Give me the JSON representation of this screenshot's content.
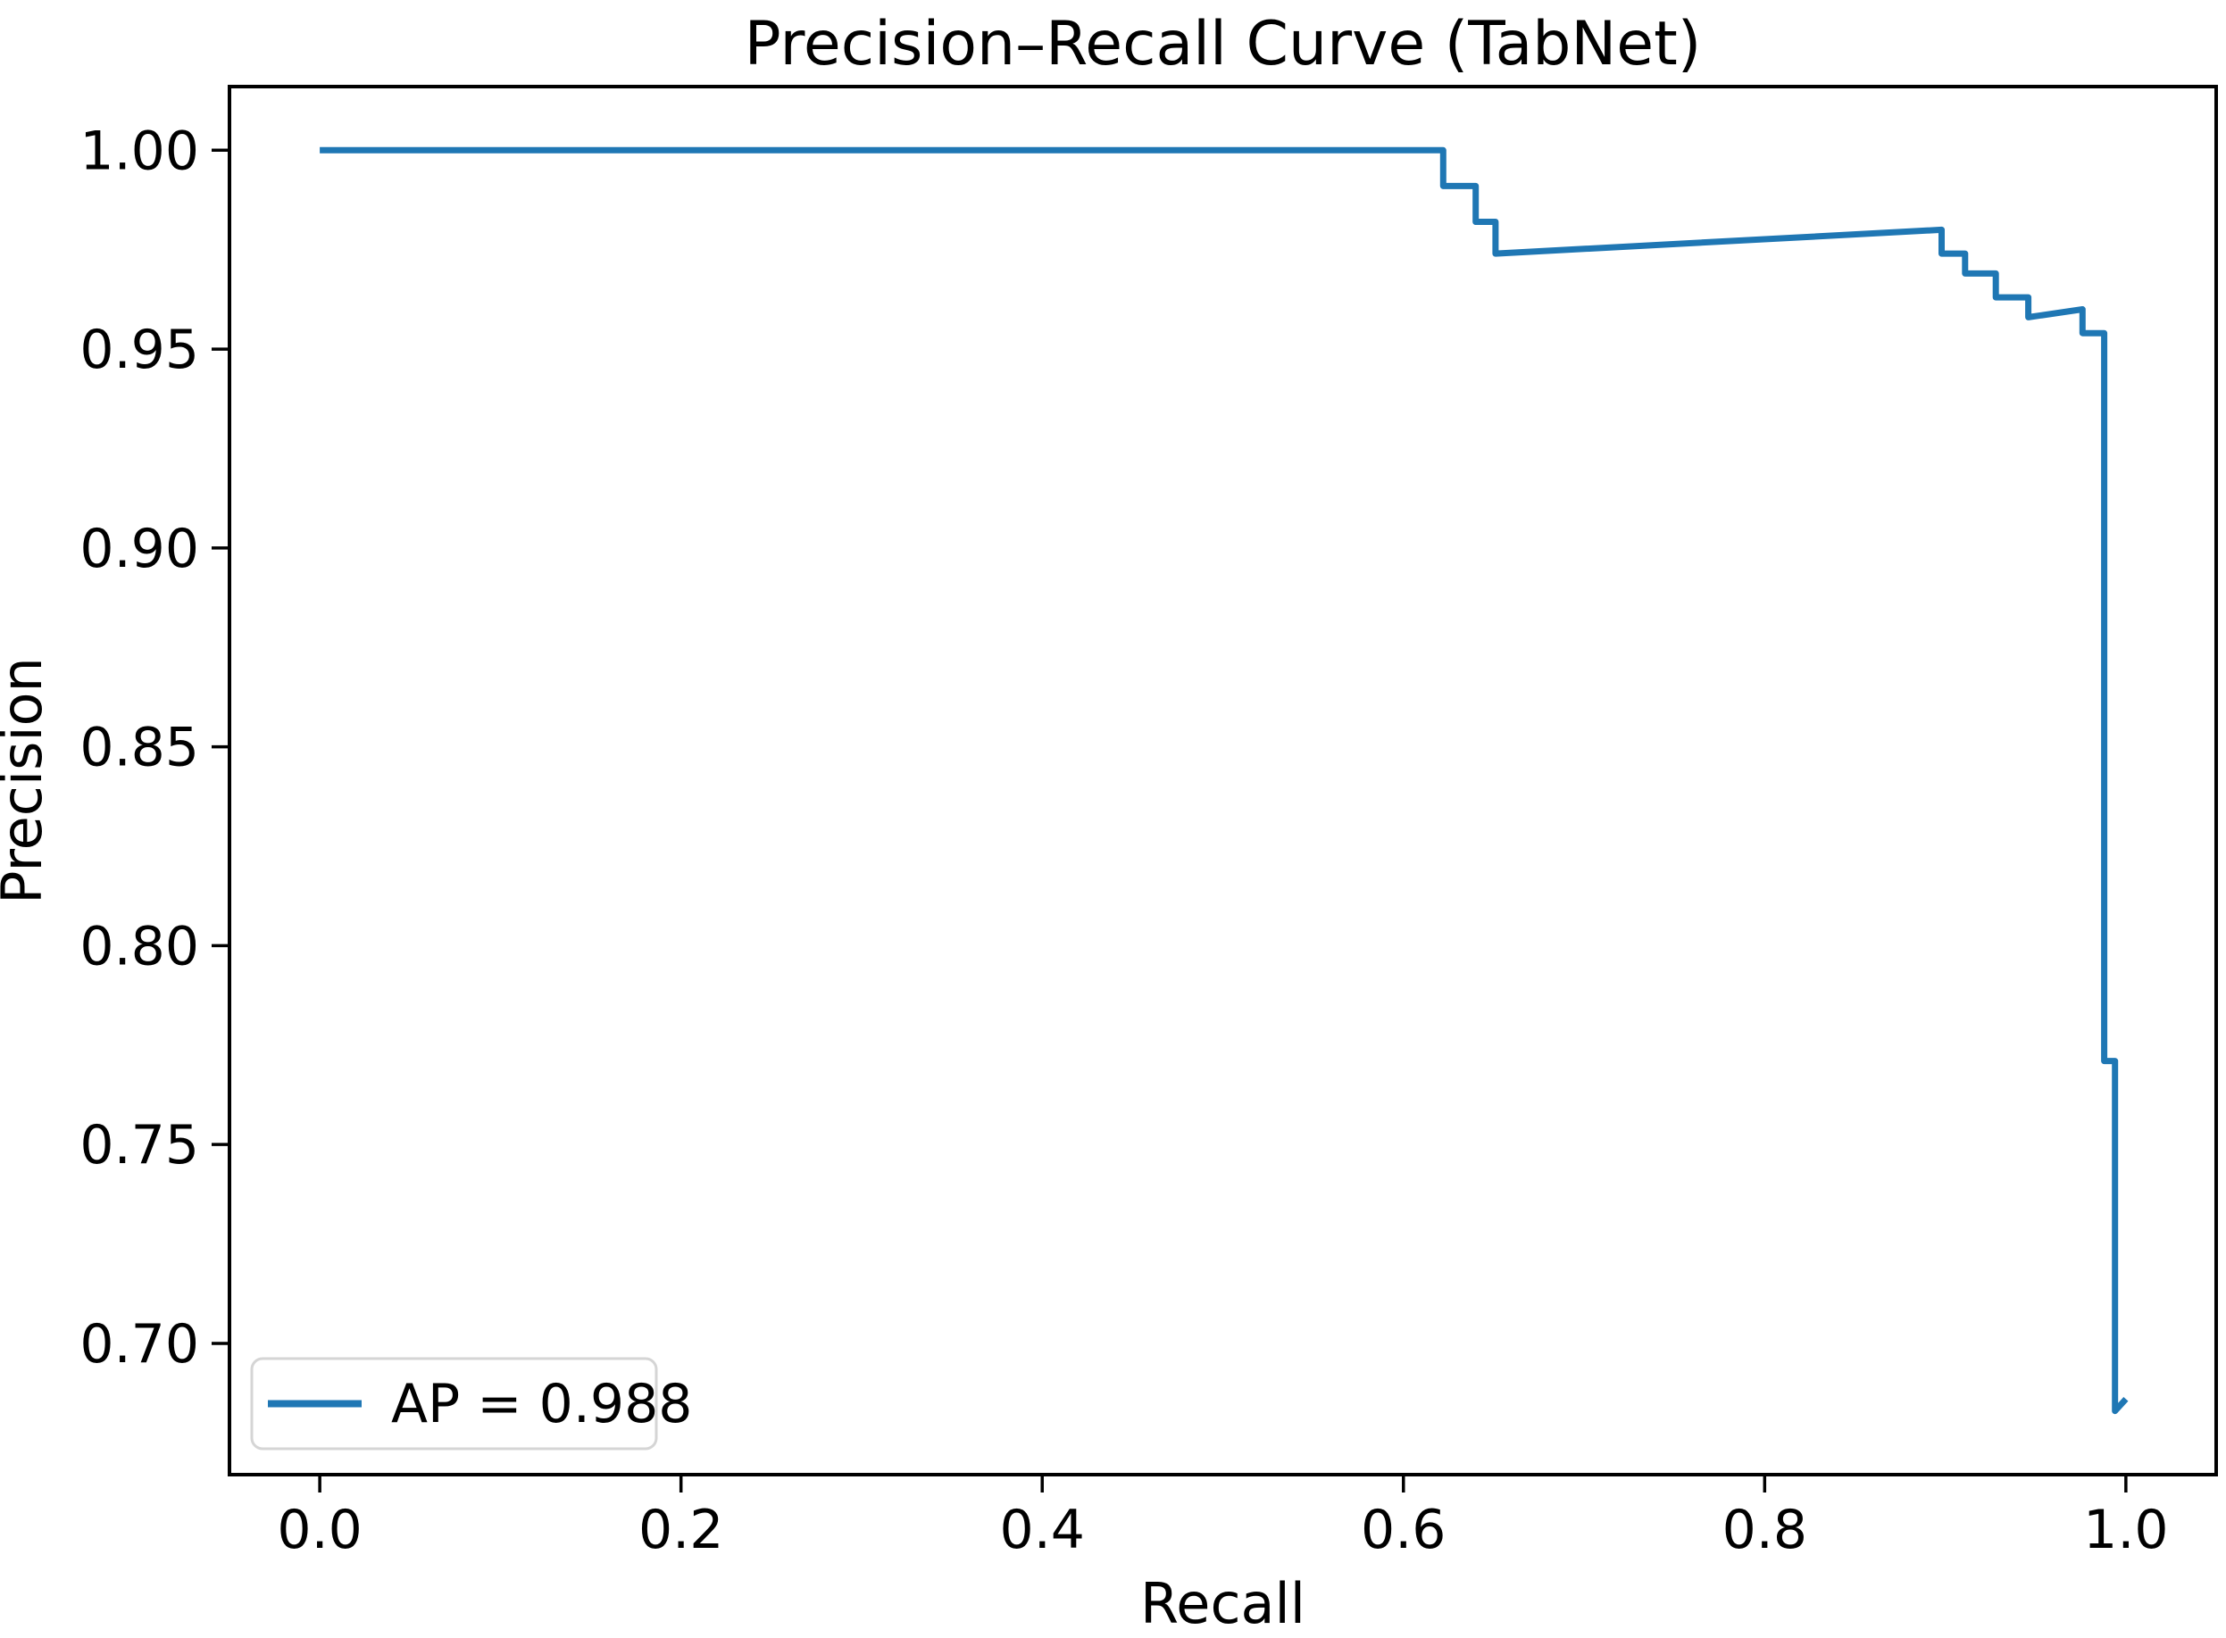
{
  "chart_data": {
    "type": "line",
    "title": "Precision–Recall Curve (TabNet)",
    "xlabel": "Recall",
    "ylabel": "Precision",
    "xlim": [
      -0.05,
      1.05
    ],
    "ylim": [
      0.667,
      1.016
    ],
    "grid": false,
    "x_ticks": [
      0.0,
      0.2,
      0.4,
      0.6,
      0.8,
      1.0
    ],
    "x_tick_labels": [
      "0.0",
      "0.2",
      "0.4",
      "0.6",
      "0.8",
      "1.0"
    ],
    "y_ticks": [
      0.7,
      0.75,
      0.8,
      0.85,
      0.9,
      0.95,
      1.0
    ],
    "y_tick_labels": [
      "0.70",
      "0.75",
      "0.80",
      "0.85",
      "0.90",
      "0.95",
      "1.00"
    ],
    "legend": {
      "position": "lower left",
      "entries": [
        {
          "label": "AP = 0.988",
          "color": "#1f77b4"
        }
      ]
    },
    "series": [
      {
        "name": "AP = 0.988",
        "color": "#1f77b4",
        "points": [
          [
            0.0,
            1.0
          ],
          [
            0.622,
            1.0
          ],
          [
            0.622,
            0.991
          ],
          [
            0.64,
            0.991
          ],
          [
            0.64,
            0.982
          ],
          [
            0.651,
            0.982
          ],
          [
            0.651,
            0.974
          ],
          [
            0.898,
            0.98
          ],
          [
            0.898,
            0.974
          ],
          [
            0.911,
            0.974
          ],
          [
            0.911,
            0.969
          ],
          [
            0.928,
            0.969
          ],
          [
            0.928,
            0.963
          ],
          [
            0.946,
            0.963
          ],
          [
            0.946,
            0.958
          ],
          [
            0.976,
            0.96
          ],
          [
            0.976,
            0.954
          ],
          [
            0.988,
            0.954
          ],
          [
            0.988,
            0.771
          ],
          [
            0.994,
            0.771
          ],
          [
            0.994,
            0.683
          ],
          [
            1.0,
            0.686
          ]
        ]
      }
    ],
    "colors": {
      "line": "#1f77b4",
      "spine": "#000000",
      "background": "#ffffff",
      "legend_border": "#d5d5d5"
    }
  }
}
